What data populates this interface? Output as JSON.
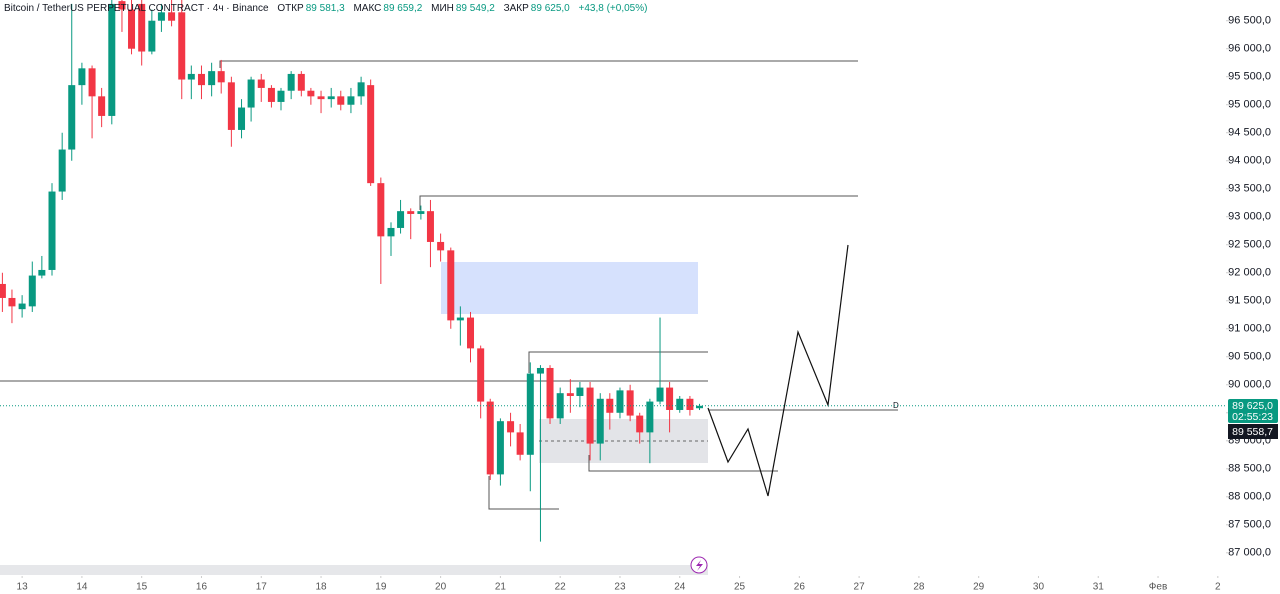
{
  "header": {
    "symbol": "Bitcoin / TetherUS PERPETUAL CONTRACT · 4ч · Binance",
    "open_label": "ОТКР",
    "open": "89 581,3",
    "high_label": "МАКС",
    "high": "89 659,2",
    "low_label": "МИН",
    "low": "89 549,2",
    "close_label": "ЗАКР",
    "close": "89 625,0",
    "change": "+43,8 (+0,05%)"
  },
  "price_scale": {
    "last_price": "89 625,0",
    "countdown": "02:55:23",
    "cursor_price": "89 558,7"
  },
  "annotations": [
    "D"
  ],
  "chart_data": {
    "type": "candlestick",
    "up_color": "#089981",
    "down_color": "#f23645",
    "grid": false,
    "x": [
      12.67,
      12.83,
      13,
      13.17,
      13.33,
      13.5,
      13.67,
      13.83,
      14,
      14.17,
      14.33,
      14.5,
      14.67,
      14.83,
      15,
      15.17,
      15.33,
      15.5,
      15.67,
      15.83,
      16,
      16.17,
      16.33,
      16.5,
      16.67,
      16.83,
      17,
      17.17,
      17.33,
      17.5,
      17.67,
      17.83,
      18,
      18.17,
      18.33,
      18.5,
      18.67,
      18.83,
      19,
      19.17,
      19.33,
      19.5,
      19.67,
      19.83,
      20,
      20.17,
      20.33,
      20.5,
      20.67,
      20.83,
      21,
      21.17,
      21.33,
      21.5,
      21.67,
      21.83,
      22,
      22.17,
      22.33,
      22.5,
      22.67,
      22.83,
      23,
      23.17,
      23.33,
      23.5,
      23.67,
      23.83,
      24,
      24.17,
      24.33
    ],
    "open": [
      91800,
      91550,
      91350,
      91400,
      91950,
      92050,
      93450,
      94200,
      95350,
      95650,
      95150,
      94800,
      96850,
      96700,
      96800,
      95950,
      96500,
      96650,
      96650,
      95450,
      95550,
      95350,
      95600,
      95400,
      94550,
      94950,
      95450,
      95300,
      95050,
      95250,
      95550,
      95250,
      95150,
      95100,
      95150,
      95000,
      95150,
      95350,
      93600,
      92650,
      92800,
      93100,
      93050,
      93100,
      92550,
      92400,
      91150,
      91200,
      90650,
      89700,
      88400,
      89350,
      89150,
      88750,
      90200,
      90300,
      89400,
      89850,
      89800,
      89950,
      88950,
      89750,
      89500,
      89900,
      89450,
      89150,
      89700,
      89950,
      89550,
      89750,
      89581.3
    ],
    "high": [
      92000,
      91700,
      91600,
      92200,
      92300,
      93600,
      94500,
      96800,
      95750,
      95700,
      95300,
      96870,
      96870,
      96870,
      96870,
      96700,
      96800,
      96870,
      96870,
      95700,
      95700,
      95750,
      95800,
      95500,
      95100,
      95500,
      95550,
      95350,
      95300,
      95600,
      95600,
      95300,
      95250,
      95300,
      95250,
      95300,
      95500,
      95450,
      93700,
      92900,
      93300,
      93150,
      93200,
      93300,
      92700,
      92450,
      91400,
      91300,
      90700,
      89750,
      89400,
      89500,
      89300,
      90400,
      90350,
      90350,
      89950,
      90100,
      90050,
      90050,
      89850,
      89850,
      89950,
      90000,
      89500,
      89750,
      91200,
      90050,
      89800,
      89800,
      89659.2
    ],
    "low": [
      91300,
      91100,
      91200,
      91300,
      91900,
      91950,
      93300,
      94000,
      95000,
      94400,
      94600,
      94650,
      96300,
      95900,
      95700,
      95900,
      96300,
      96400,
      95100,
      95100,
      95100,
      95150,
      95200,
      94250,
      94400,
      94700,
      95050,
      94950,
      94900,
      95100,
      95150,
      95000,
      94850,
      94950,
      94900,
      94850,
      95000,
      93550,
      91800,
      92300,
      92700,
      92600,
      92950,
      92100,
      92200,
      91000,
      90700,
      90400,
      89400,
      88300,
      88200,
      88900,
      88650,
      88100,
      87200,
      89300,
      89300,
      89500,
      89600,
      88650,
      88650,
      89200,
      89400,
      89350,
      88950,
      88600,
      89650,
      89150,
      89500,
      89450,
      89549.2
    ],
    "close": [
      91550,
      91400,
      91450,
      91950,
      92050,
      93450,
      94200,
      95350,
      95650,
      95150,
      94800,
      96800,
      96700,
      96000,
      95950,
      96500,
      96650,
      96500,
      95450,
      95550,
      95350,
      95600,
      95400,
      94550,
      94950,
      95450,
      95300,
      95050,
      95250,
      95550,
      95250,
      95150,
      95100,
      95150,
      95000,
      95150,
      95400,
      93600,
      92650,
      92800,
      93100,
      93050,
      93100,
      92550,
      92400,
      91150,
      91200,
      90650,
      89700,
      88400,
      89350,
      89150,
      88750,
      90200,
      90300,
      89400,
      89850,
      89800,
      89950,
      88950,
      89750,
      89500,
      89900,
      89450,
      89150,
      89700,
      89950,
      89550,
      89750,
      89550,
      89625
    ],
    "xlim": [
      12.63,
      33.12
    ],
    "xticks": [
      13,
      14,
      15,
      16,
      17,
      18,
      19,
      20,
      21,
      22,
      23,
      24,
      25,
      26,
      27,
      28,
      29,
      30,
      31,
      {
        "value": 32,
        "label": "Фев"
      },
      {
        "value": 33,
        "label": "2"
      }
    ],
    "ylim": [
      86800,
      96870
    ],
    "yticks": [
      {
        "value": 87000,
        "label": "87 000,0"
      },
      {
        "value": 87500,
        "label": "87 500,0"
      },
      {
        "value": 88000,
        "label": "88 000,0"
      },
      {
        "value": 88500,
        "label": "88 500,0"
      },
      {
        "value": 89000,
        "label": "89 000,0"
      },
      {
        "value": 89500,
        "label": "89 500,0"
      },
      {
        "value": 90000,
        "label": "90 000,0"
      },
      {
        "value": 90500,
        "label": "90 500,0"
      },
      {
        "value": 91000,
        "label": "91 000,0"
      },
      {
        "value": 91500,
        "label": "91 500,0"
      },
      {
        "value": 92000,
        "label": "92 000,0"
      },
      {
        "value": 92500,
        "label": "92 500,0"
      },
      {
        "value": 93000,
        "label": "93 000,0"
      },
      {
        "value": 93500,
        "label": "93 500,0"
      },
      {
        "value": 94000,
        "label": "94 000,0"
      },
      {
        "value": 94500,
        "label": "94 500,0"
      },
      {
        "value": 95000,
        "label": "95 000,0"
      },
      {
        "value": 95500,
        "label": "95 500,0"
      },
      {
        "value": 96000,
        "label": "96 000,0"
      },
      {
        "value": 96500,
        "label": "96 500,0"
      }
    ]
  }
}
